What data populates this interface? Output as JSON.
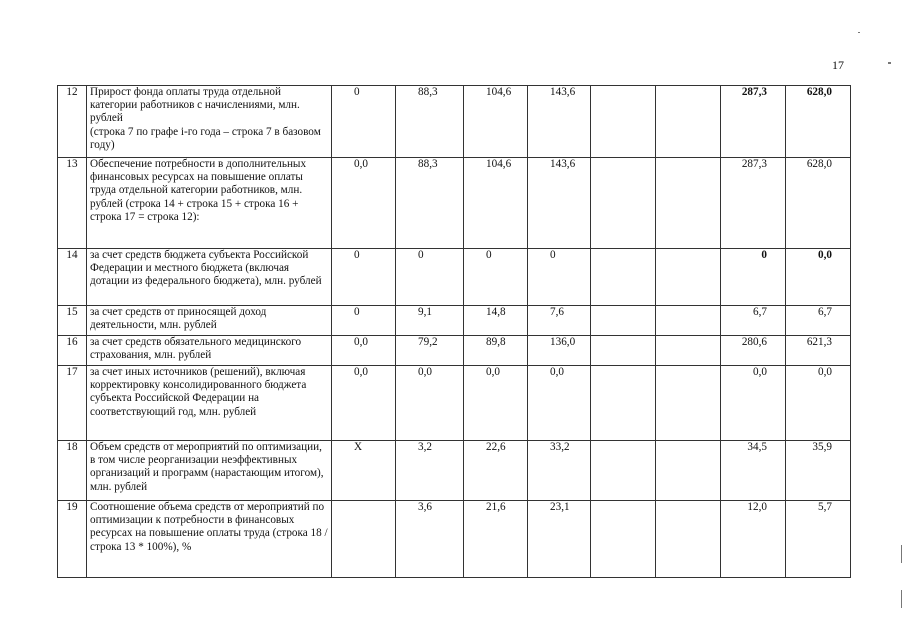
{
  "page_number": "17",
  "rows": [
    {
      "num": "12",
      "text": "Прирост фонда оплаты труда отдельной категории работников с начислениями, млн. рублей\n (строка 7 по графе i-го года – строка 7 в базовом году)",
      "values": [
        "0",
        "88,3",
        "104,6",
        "143,6",
        "",
        "",
        "287,3",
        "628,0"
      ],
      "bold_totals": true
    },
    {
      "num": "13",
      "text": "Обеспечение потребности в дополнительных финансовых ресурсах на повышение оплаты труда отдельной категории работников, млн. рублей (строка 14 + строка 15 + строка 16 + строка 17 = строка 12):",
      "values": [
        "0,0",
        "88,3",
        "104,6",
        "143,6",
        "",
        "",
        "287,3",
        "628,0"
      ],
      "bold_totals": false
    },
    {
      "num": "14",
      "text": "за счет средств бюджета субъекта Российской Федерации и местного бюджета  (включая дотации из федерального бюджета), млн. рублей",
      "values": [
        "0",
        "0",
        "0",
        "0",
        "",
        "",
        "0",
        "0,0"
      ],
      "bold_totals": true
    },
    {
      "num": "15",
      "text": "за счет средств от приносящей доход деятельности, млн. рублей",
      "values": [
        "0",
        "9,1",
        "14,8",
        "7,6",
        "",
        "",
        "6,7",
        "6,7"
      ],
      "bold_totals": false
    },
    {
      "num": "16",
      "text": "за счет средств обязательного медицинского страхования, млн. рублей",
      "values": [
        "0,0",
        "79,2",
        "89,8",
        "136,0",
        "",
        "",
        "280,6",
        "621,3"
      ],
      "bold_totals": false
    },
    {
      "num": "17",
      "text": "за счет иных источников (решений), включая корректировку консолидированного бюджета субъекта Российской Федерации на соответствующий год, млн. рублей",
      "values": [
        "0,0",
        "0,0",
        "0,0",
        "0,0",
        "",
        "",
        "0,0",
        "0,0"
      ],
      "bold_totals": false
    },
    {
      "num": "18",
      "text": "Объем средств от мероприятий по оптимизации, в том числе реорганизации неэффективных организаций и программ (нарастающим итогом), млн. рублей",
      "values": [
        "X",
        "3,2",
        "22,6",
        "33,2",
        "",
        "",
        "34,5",
        "35,9"
      ],
      "bold_totals": false
    },
    {
      "num": "19",
      "text": "Соотношение объема средств от мероприятий по оптимизации к потребности в финансовых ресурсах на повышение оплаты труда (строка 18 / строка 13 * 100%), %",
      "values": [
        "",
        "3,6",
        "21,6",
        "23,1",
        "",
        "",
        "12,0",
        "5,7"
      ],
      "bold_totals": false
    }
  ]
}
